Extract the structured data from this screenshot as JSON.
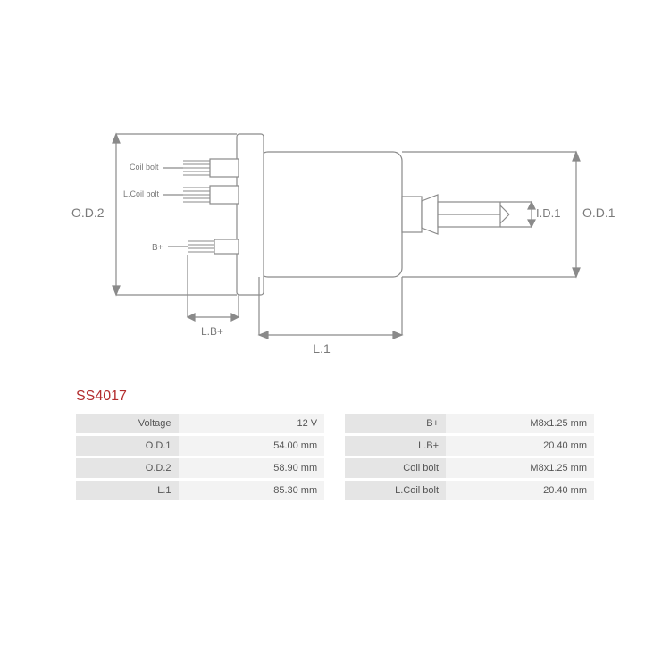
{
  "part_number": "SS4017",
  "diagram": {
    "labels": {
      "od2": "O.D.2",
      "od1": "O.D.1",
      "id1": "I.D.1",
      "l1": "L.1",
      "lb_plus": "L.B+",
      "b_plus": "B+",
      "coil_bolt": "Coil bolt",
      "lcoil_bolt": "L.Coil bolt"
    },
    "colors": {
      "line": "#8a8a8a",
      "text": "#7a7a7a",
      "fill_body": "#ffffff"
    }
  },
  "spec_rows": [
    {
      "l_label": "Voltage",
      "l_value": "12 V",
      "r_label": "B+",
      "r_value": "M8x1.25 mm"
    },
    {
      "l_label": "O.D.1",
      "l_value": "54.00 mm",
      "r_label": "L.B+",
      "r_value": "20.40 mm"
    },
    {
      "l_label": "O.D.2",
      "l_value": "58.90 mm",
      "r_label": "Coil bolt",
      "r_value": "M8x1.25 mm"
    },
    {
      "l_label": "L.1",
      "l_value": "85.30 mm",
      "r_label": "L.Coil bolt",
      "r_value": "20.40 mm"
    }
  ]
}
